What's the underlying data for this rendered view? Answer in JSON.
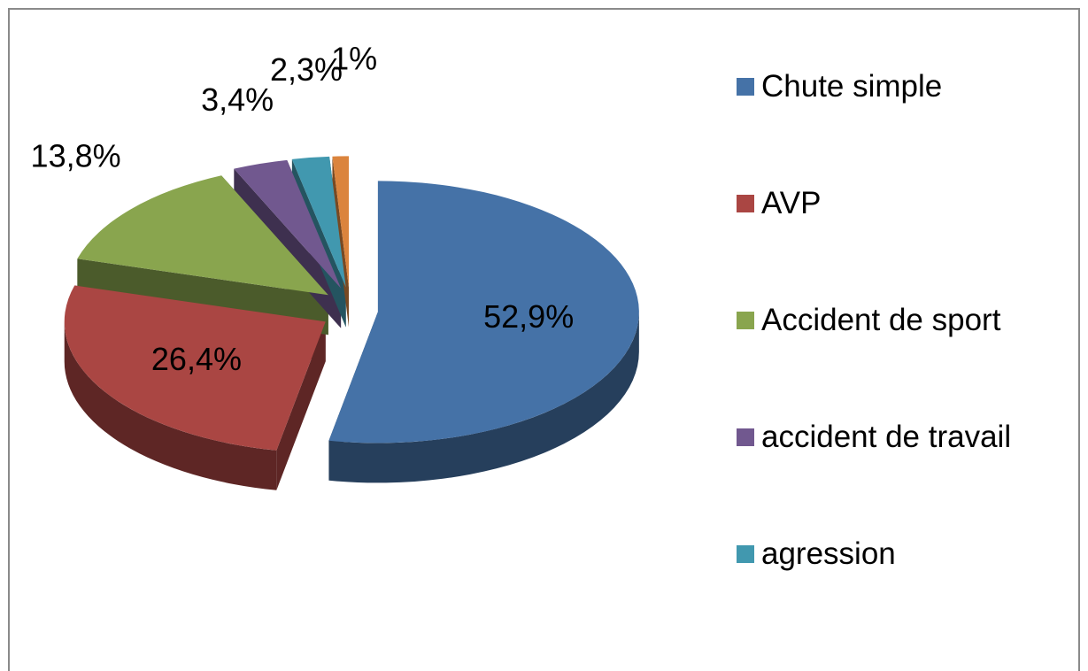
{
  "chart_data": {
    "type": "pie3d",
    "categories": [
      "Chute simple",
      "AVP",
      "Accident de sport",
      "accident de travail",
      "agression",
      null
    ],
    "values": [
      52.9,
      26.4,
      13.8,
      3.4,
      2.3,
      1
    ],
    "value_labels": [
      "52,9%",
      "26,4%",
      "13,8%",
      "3,4%",
      "2,3%",
      "1%"
    ],
    "colors": [
      "#4572a7",
      "#aa4643",
      "#89a54e",
      "#71588f",
      "#4198af",
      "#db843d"
    ],
    "exploded": true,
    "legend": "right"
  }
}
